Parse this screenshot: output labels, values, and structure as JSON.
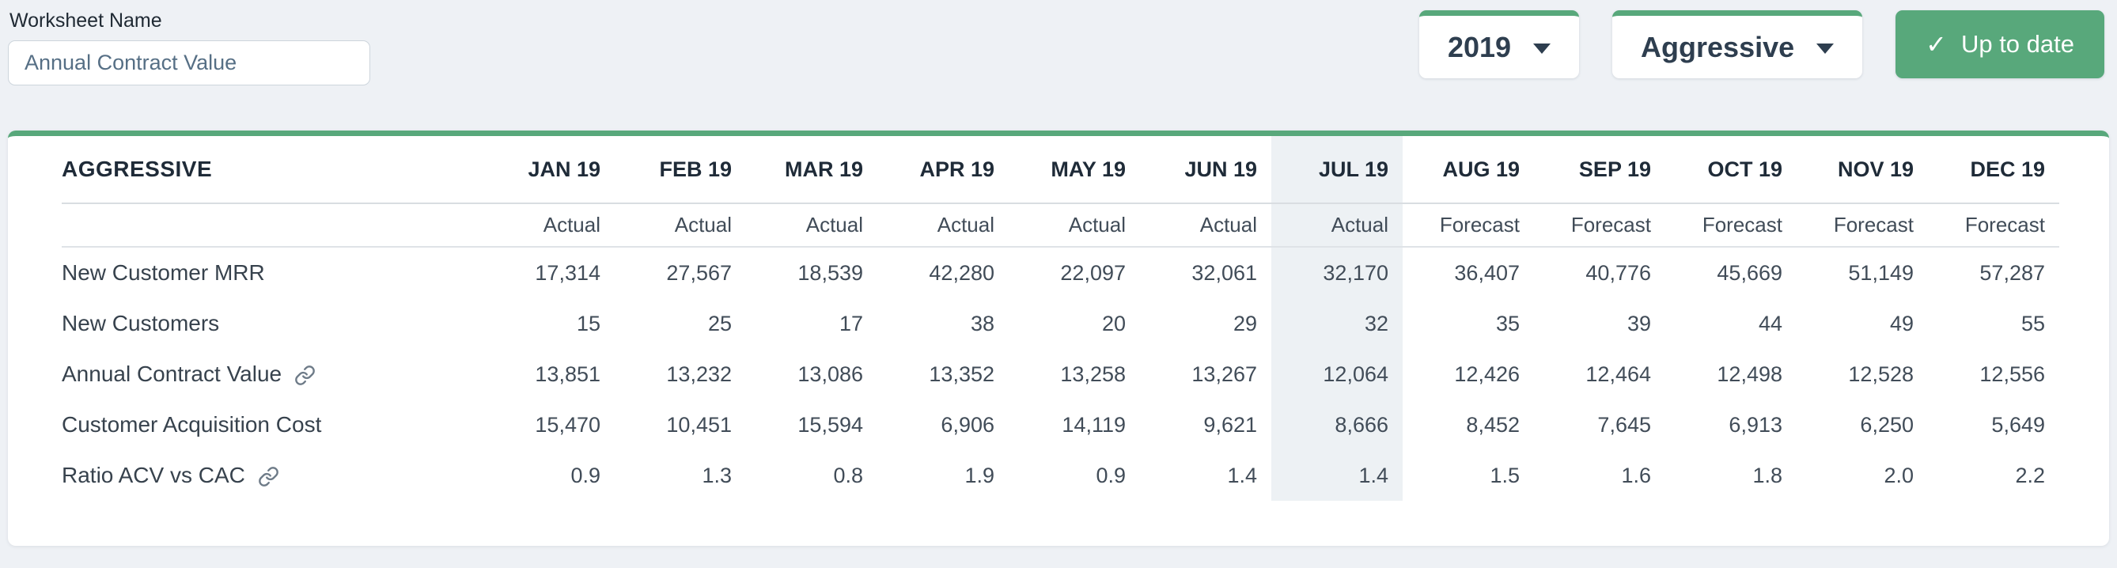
{
  "worksheet": {
    "label": "Worksheet Name",
    "value": "Annual Contract Value"
  },
  "controls": {
    "year": {
      "value": "2019",
      "icon": "chevron-down"
    },
    "scenario": {
      "value": "Aggressive",
      "icon": "chevron-down"
    },
    "status": {
      "label": "Up to date",
      "icon": "check"
    }
  },
  "table": {
    "title": "AGGRESSIVE",
    "months": [
      "JAN 19",
      "FEB 19",
      "MAR 19",
      "APR 19",
      "MAY 19",
      "JUN 19",
      "JUL 19",
      "AUG 19",
      "SEP 19",
      "OCT 19",
      "NOV 19",
      "DEC 19"
    ],
    "period_types": [
      "Actual",
      "Actual",
      "Actual",
      "Actual",
      "Actual",
      "Actual",
      "Actual",
      "Forecast",
      "Forecast",
      "Forecast",
      "Forecast",
      "Forecast"
    ],
    "highlighted_month": "JUL 19",
    "highlighted_index": 6,
    "rows": [
      {
        "label": "New Customer MRR",
        "linked": false,
        "values": [
          "17,314",
          "27,567",
          "18,539",
          "42,280",
          "22,097",
          "32,061",
          "32,170",
          "36,407",
          "40,776",
          "45,669",
          "51,149",
          "57,287"
        ]
      },
      {
        "label": "New Customers",
        "linked": false,
        "values": [
          "15",
          "25",
          "17",
          "38",
          "20",
          "29",
          "32",
          "35",
          "39",
          "44",
          "49",
          "55"
        ]
      },
      {
        "label": "Annual Contract Value",
        "linked": true,
        "values": [
          "13,851",
          "13,232",
          "13,086",
          "13,352",
          "13,258",
          "13,267",
          "12,064",
          "12,426",
          "12,464",
          "12,498",
          "12,528",
          "12,556"
        ]
      },
      {
        "label": "Customer Acquisition Cost",
        "linked": false,
        "values": [
          "15,470",
          "10,451",
          "15,594",
          "6,906",
          "14,119",
          "9,621",
          "8,666",
          "8,452",
          "7,645",
          "6,913",
          "6,250",
          "5,649"
        ]
      },
      {
        "label": "Ratio ACV vs CAC",
        "linked": true,
        "values": [
          "0.9",
          "1.3",
          "0.8",
          "1.9",
          "0.9",
          "1.4",
          "1.4",
          "1.5",
          "1.6",
          "1.8",
          "2.0",
          "2.2"
        ]
      }
    ]
  },
  "colors": {
    "accent_green": "#58a87b",
    "page_bg": "#eef1f5",
    "highlight_column_bg": "#edf1f4",
    "heading_text": "#1f2b38",
    "value_text": "#414c58"
  }
}
